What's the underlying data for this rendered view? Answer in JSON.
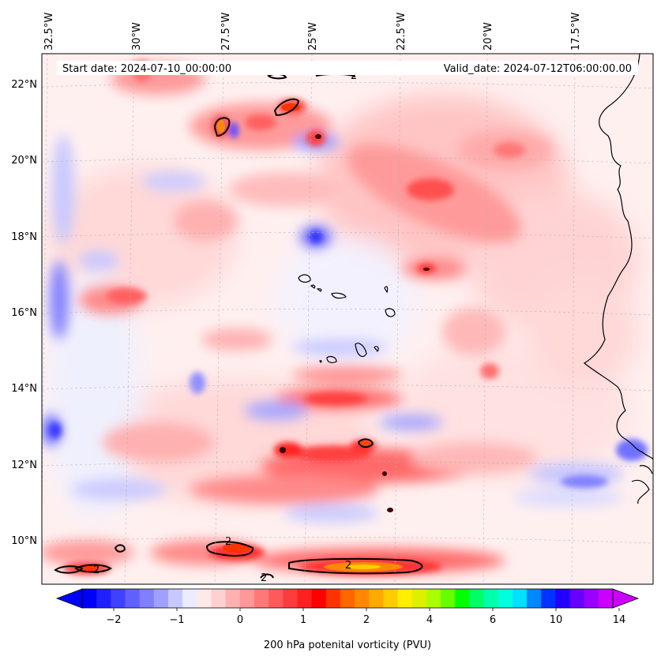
{
  "header": {
    "start_date": "Start date: 2024-07-10_00:00:00",
    "valid_date": "Valid_date: 2024-07-12T06:00:00.00"
  },
  "map": {
    "lon_ticks": [
      "32.5°W",
      "30°W",
      "27.5°W",
      "25°W",
      "22.5°W",
      "20°W",
      "17.5°W"
    ],
    "lat_ticks": [
      "22°N",
      "20°N",
      "18°N",
      "16°N",
      "14°N",
      "12°N",
      "10°N"
    ],
    "contour_label": "2",
    "colors": {
      "coastline": "#000000",
      "gridline": "#b0b0b0"
    }
  },
  "colorbar": {
    "label": "200 hPa potenital vorticity (PVU)",
    "ticks": [
      "−2",
      "−1",
      "0",
      "1",
      "2",
      "4",
      "6",
      "10",
      "14"
    ],
    "colors": [
      "#0000ff",
      "#2020ff",
      "#4040ff",
      "#6060ff",
      "#8080ff",
      "#a0a0ff",
      "#c8c8ff",
      "#ececff",
      "#ffe8e8",
      "#ffd0d0",
      "#ffb0b0",
      "#ff9898",
      "#ff7878",
      "#ff5a5a",
      "#ff3c3c",
      "#ff2020",
      "#ff0000",
      "#ff3300",
      "#ff6600",
      "#ff8800",
      "#ffaa00",
      "#ffcc00",
      "#ffee00",
      "#ddf000",
      "#aaff00",
      "#66ff00",
      "#00ff00",
      "#00ff66",
      "#00ffaa",
      "#00ffdd",
      "#00e0ff",
      "#0088ff",
      "#0033ff",
      "#2200ff",
      "#6600ff",
      "#9900ff",
      "#cc00ff"
    ]
  }
}
